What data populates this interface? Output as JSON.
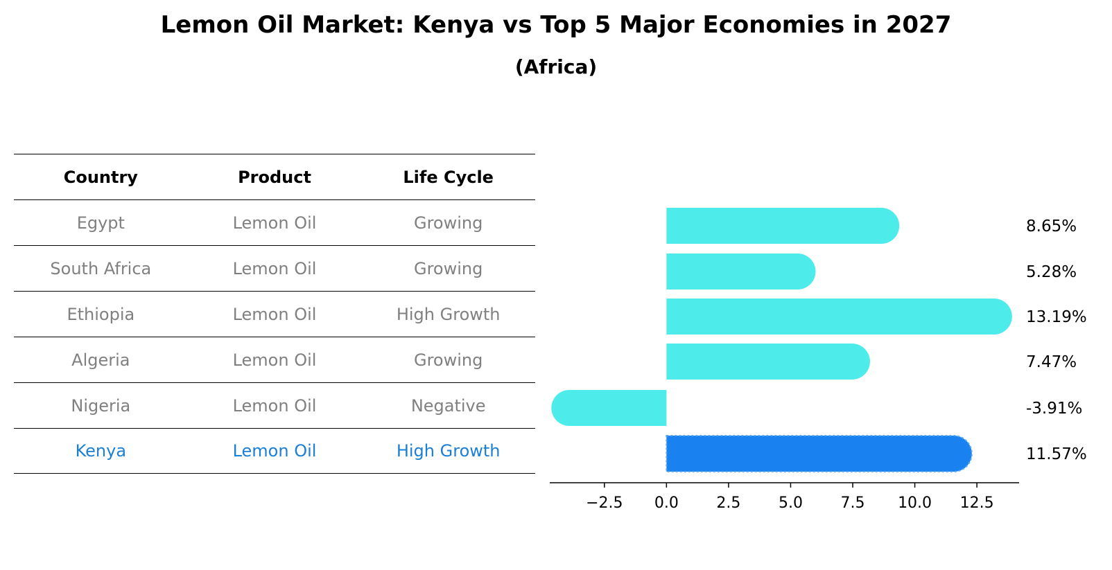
{
  "title": "Lemon Oil Market: Kenya vs Top 5 Major Economies in 2027",
  "subtitle": "(Africa)",
  "table": {
    "headers": [
      "Country",
      "Product",
      "Life Cycle"
    ],
    "rows": [
      [
        "Egypt",
        "Lemon Oil",
        "Growing"
      ],
      [
        "South Africa",
        "Lemon Oil",
        "Growing"
      ],
      [
        "Ethiopia",
        "Lemon Oil",
        "High Growth"
      ],
      [
        "Algeria",
        "Lemon Oil",
        "Growing"
      ],
      [
        "Nigeria",
        "Lemon Oil",
        "Negative"
      ],
      [
        "Kenya",
        "Lemon Oil",
        "High Growth"
      ]
    ]
  },
  "chart_data": {
    "type": "bar",
    "orientation": "horizontal",
    "categories": [
      "Egypt",
      "South Africa",
      "Ethiopia",
      "Algeria",
      "Nigeria",
      "Kenya"
    ],
    "values": [
      8.65,
      5.28,
      13.19,
      7.47,
      -3.91,
      11.57
    ],
    "value_labels": [
      "8.65%",
      "5.28%",
      "13.19%",
      "7.47%",
      "-3.91%",
      "11.57%"
    ],
    "xlim": [
      -4.7,
      14.2
    ],
    "xticks": [
      -2.5,
      0.0,
      2.5,
      5.0,
      7.5,
      10.0,
      12.5
    ],
    "xtick_labels": [
      "−2.5",
      "0.0",
      "2.5",
      "5.0",
      "7.5",
      "10.0",
      "12.5"
    ],
    "highlight": "Kenya",
    "colors": {
      "bar": "#4deceb",
      "highlight": "#1a82f0"
    },
    "grid": false
  }
}
